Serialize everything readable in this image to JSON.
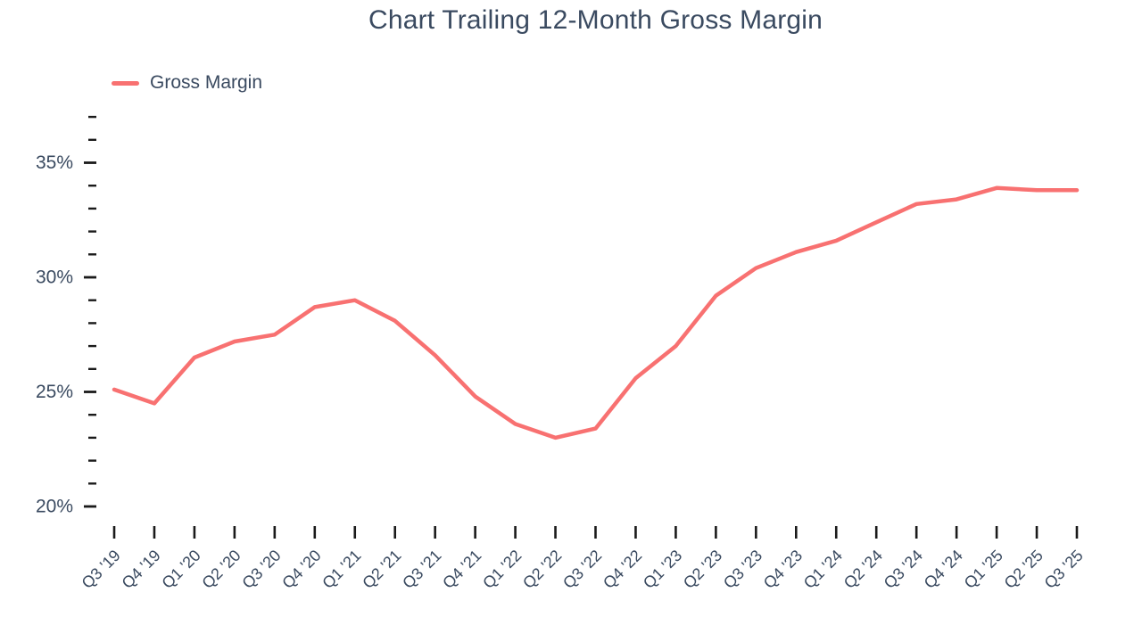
{
  "title": "Chart Trailing 12-Month Gross Margin",
  "legend": {
    "label": "Gross Margin"
  },
  "colors": {
    "line": "#f87171",
    "text": "#3a4a60",
    "tick": "#1a1a1a",
    "background": "#ffffff"
  },
  "chart_data": {
    "type": "line",
    "title": "Chart Trailing 12-Month Gross Margin",
    "categories": [
      "Q3 '19",
      "Q4 '19",
      "Q1 '20",
      "Q2 '20",
      "Q3 '20",
      "Q4 '20",
      "Q1 '21",
      "Q2 '21",
      "Q3 '21",
      "Q4 '21",
      "Q1 '22",
      "Q2 '22",
      "Q3 '22",
      "Q4 '22",
      "Q1 '23",
      "Q2 '23",
      "Q3 '23",
      "Q4 '23",
      "Q1 '24",
      "Q2 '24",
      "Q3 '24",
      "Q4 '24",
      "Q1 '25",
      "Q2 '25",
      "Q3 '25"
    ],
    "series": [
      {
        "name": "Gross Margin",
        "values": [
          25.1,
          24.5,
          26.5,
          27.2,
          27.5,
          28.7,
          29.0,
          28.1,
          26.6,
          24.8,
          23.6,
          23.0,
          23.4,
          25.6,
          27.0,
          29.2,
          30.4,
          31.1,
          31.6,
          32.4,
          33.2,
          33.4,
          33.9,
          33.8,
          33.8
        ]
      }
    ],
    "xlabel": "",
    "ylabel": "",
    "y_unit": "%",
    "ylim": [
      20,
      37
    ],
    "y_major_ticks": [
      20,
      25,
      30,
      35
    ],
    "y_minor_step": 1,
    "x_tick_angle": -45,
    "grid": false,
    "legend_position": "top-left"
  }
}
